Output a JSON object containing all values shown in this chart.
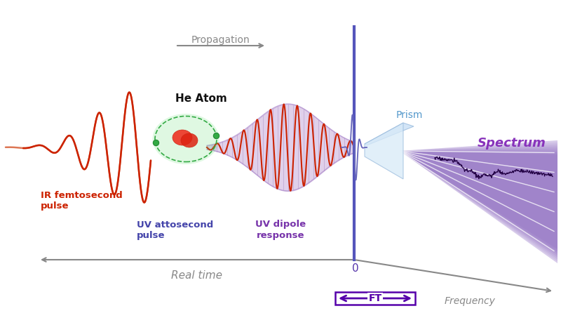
{
  "bg_color": "#ffffff",
  "ir_color": "#cc2200",
  "ir_tail_color": "#e8886060",
  "uv_pulse_color": "#4444aa",
  "uv_dipole_color": "#cc2200",
  "uv_dipole_fill_color": "#aa66cc",
  "envelope_color": "#9977bb",
  "prism_color": "#c0d8f0",
  "spectrum_fill_color": "#8855bb",
  "spectrum_line_color": "#220055",
  "axis_color": "#888888",
  "propagation_color": "#888888",
  "ft_color": "#5500aa",
  "realtime_label_color": "#888888",
  "frequency_label_color": "#888888",
  "he_atom_label": "He Atom",
  "propagation_label": "Propagation",
  "ir_label_line1": "IR femtosecond",
  "ir_label_line2": "pulse",
  "uv_label_line1": "UV attosecond",
  "uv_label_line2": "pulse",
  "dipole_label_line1": "UV dipole",
  "dipole_label_line2": "response",
  "prism_label": "Prism",
  "spectrum_label": "Spectrum",
  "realtime_label": "Real time",
  "frequency_label": "Frequency",
  "ft_label": "FT",
  "zero_label": "0"
}
